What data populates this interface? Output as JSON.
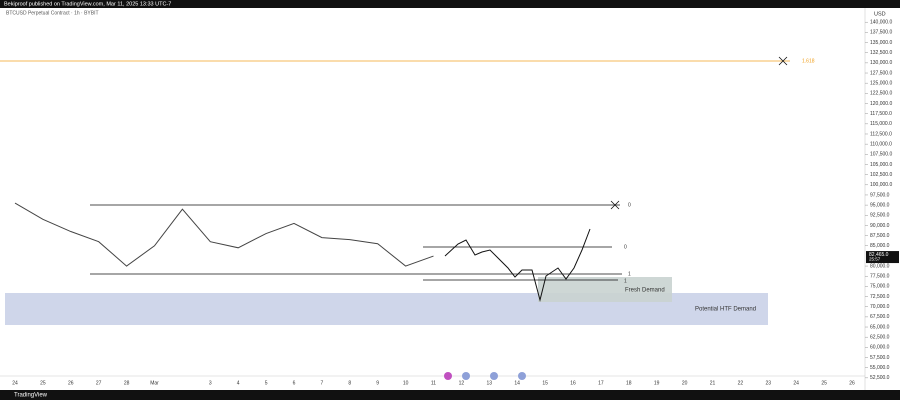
{
  "header": "Bekiproof published on TradingView.com, Mar 11, 2025 13:33 UTC-7",
  "footer": "TradingView",
  "chart_data": {
    "type": "line",
    "title": "BTCUSD Perpetual Contract · 1h · BYBIT",
    "y_axis_label": "USD",
    "categories": [
      "24",
      "25",
      "26",
      "27",
      "28",
      "Mar",
      null,
      "3",
      "4",
      "5",
      "6",
      "7",
      "8",
      "9",
      "10",
      "11",
      "12",
      "13",
      "14",
      "15",
      "16",
      "17",
      "18",
      "19",
      "20",
      "21",
      "22",
      "23",
      "24",
      "25",
      "26"
    ],
    "series": [
      {
        "name": "BTCUSD",
        "color": "#444444",
        "values": [
          95500,
          91500,
          88500,
          86000,
          80000,
          85000,
          94000,
          86000,
          84500,
          88000,
          90500,
          87000,
          86500,
          85500,
          80000,
          82465,
          null,
          null,
          null,
          null,
          null,
          null,
          null,
          null,
          null,
          null,
          null,
          null,
          null,
          null,
          null
        ]
      }
    ],
    "last_price": {
      "value": 82465,
      "label": "82,465.0"
    },
    "countdown": "25:57",
    "annotations": [
      "1.618",
      "0",
      "0",
      "1",
      "1",
      "Fresh Demand",
      "Potential HTF Demand"
    ],
    "ylim": [
      50000,
      143500
    ],
    "yticks": [
      {
        "value": 52500,
        "label": "52,500.0"
      },
      {
        "value": 55000,
        "label": "55,000.0"
      },
      {
        "value": 57500,
        "label": "57,500.0"
      },
      {
        "value": 60000,
        "label": "60,000.0"
      },
      {
        "value": 62500,
        "label": "62,500.0"
      },
      {
        "value": 65000,
        "label": "65,000.0"
      },
      {
        "value": 67500,
        "label": "67,500.0"
      },
      {
        "value": 70000,
        "label": "70,000.0"
      },
      {
        "value": 72500,
        "label": "72,500.0"
      },
      {
        "value": 75000,
        "label": "75,000.0"
      },
      {
        "value": 77500,
        "label": "77,500.0"
      },
      {
        "value": 80000,
        "label": "80,000.0"
      },
      {
        "value": 85000,
        "label": "85,000.0"
      },
      {
        "value": 87500,
        "label": "87,500.0"
      },
      {
        "value": 90000,
        "label": "90,000.0"
      },
      {
        "value": 92500,
        "label": "92,500.0"
      },
      {
        "value": 95000,
        "label": "95,000.0"
      },
      {
        "value": 97500,
        "label": "97,500.0"
      },
      {
        "value": 100000,
        "label": "100,000.0"
      },
      {
        "value": 102500,
        "label": "102,500.0"
      },
      {
        "value": 105000,
        "label": "105,000.0"
      },
      {
        "value": 107500,
        "label": "107,500.0"
      },
      {
        "value": 110000,
        "label": "110,000.0"
      },
      {
        "value": 112500,
        "label": "112,500.0"
      },
      {
        "value": 115000,
        "label": "115,000.0"
      },
      {
        "value": 117500,
        "label": "117,500.0"
      },
      {
        "value": 120000,
        "label": "120,000.0"
      },
      {
        "value": 122500,
        "label": "122,500.0"
      },
      {
        "value": 125000,
        "label": "125,000.0"
      },
      {
        "value": 127500,
        "label": "127,500.0"
      },
      {
        "value": 130000,
        "label": "130,000.0"
      },
      {
        "value": 132500,
        "label": "132,500.0"
      },
      {
        "value": 135000,
        "label": "135,000.0"
      },
      {
        "value": 137500,
        "label": "137,500.0"
      },
      {
        "value": 140000,
        "label": "140,000.0"
      }
    ],
    "grid": false
  }
}
